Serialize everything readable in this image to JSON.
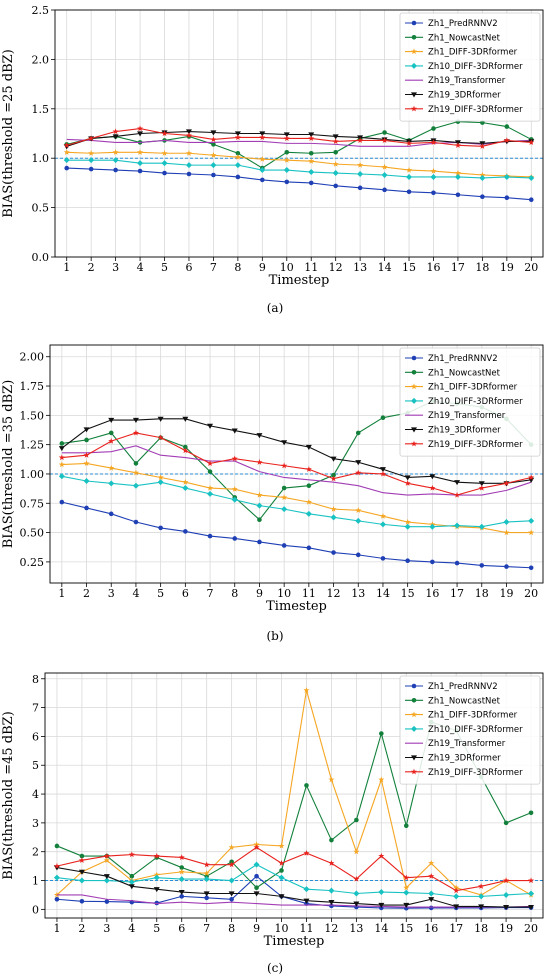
{
  "chart_data": [
    {
      "type": "line",
      "panel_label": "(a)",
      "xlabel": "Timestep",
      "ylabel": "BIAS(threshold =25 dBZ)",
      "x": [
        1,
        2,
        3,
        4,
        5,
        6,
        7,
        8,
        9,
        10,
        11,
        12,
        13,
        14,
        15,
        16,
        17,
        18,
        19,
        20
      ],
      "xticks": [
        "1",
        "2",
        "3",
        "4",
        "5",
        "6",
        "7",
        "8",
        "9",
        "10",
        "11",
        "12",
        "13",
        "14",
        "15",
        "16",
        "17",
        "18",
        "19",
        "20"
      ],
      "ylim": [
        0,
        2.5
      ],
      "yticks": [
        "0.0",
        "0.5",
        "1.0",
        "1.5",
        "2.0",
        "2.5"
      ],
      "reference_line": 1.0,
      "grid": true,
      "legend_position": "top-right",
      "series": [
        {
          "name": "Zh1_PredRNNV2",
          "color": "#1f3fb4",
          "marker": "circle",
          "values": [
            0.9,
            0.89,
            0.88,
            0.87,
            0.85,
            0.84,
            0.83,
            0.81,
            0.78,
            0.76,
            0.75,
            0.72,
            0.7,
            0.68,
            0.66,
            0.65,
            0.63,
            0.61,
            0.6,
            0.58
          ]
        },
        {
          "name": "Zh1_NowcastNet",
          "color": "#12803b",
          "marker": "circle",
          "values": [
            1.14,
            1.2,
            1.22,
            1.16,
            1.18,
            1.22,
            1.14,
            1.05,
            0.9,
            1.06,
            1.05,
            1.06,
            1.2,
            1.26,
            1.18,
            1.3,
            1.37,
            1.36,
            1.32,
            1.19
          ]
        },
        {
          "name": "Zh1_DIFF-3DRformer",
          "color": "#f5a623",
          "marker": "star",
          "values": [
            1.06,
            1.05,
            1.06,
            1.06,
            1.05,
            1.05,
            1.03,
            1.01,
            0.99,
            0.98,
            0.97,
            0.94,
            0.93,
            0.91,
            0.88,
            0.87,
            0.85,
            0.83,
            0.82,
            0.81
          ]
        },
        {
          "name": "Zh10_DIFF-3DRformer",
          "color": "#19c2c2",
          "marker": "diamond",
          "values": [
            0.98,
            0.98,
            0.98,
            0.95,
            0.95,
            0.93,
            0.93,
            0.93,
            0.88,
            0.88,
            0.86,
            0.85,
            0.84,
            0.83,
            0.81,
            0.81,
            0.81,
            0.8,
            0.81,
            0.8
          ]
        },
        {
          "name": "Zh19_Transformer",
          "color": "#a23db5",
          "marker": "none",
          "values": [
            1.19,
            1.18,
            1.16,
            1.16,
            1.18,
            1.16,
            1.16,
            1.17,
            1.17,
            1.15,
            1.15,
            1.14,
            1.12,
            1.12,
            1.12,
            1.15,
            1.16,
            1.14,
            1.17,
            1.18
          ]
        },
        {
          "name": "Zh19_3DRformer",
          "color": "#111111",
          "marker": "triangle-down",
          "values": [
            1.12,
            1.2,
            1.22,
            1.25,
            1.26,
            1.27,
            1.26,
            1.25,
            1.25,
            1.24,
            1.24,
            1.22,
            1.21,
            1.19,
            1.17,
            1.18,
            1.16,
            1.15,
            1.17,
            1.17
          ]
        },
        {
          "name": "Zh19_DIFF-3DRformer",
          "color": "#e8231e",
          "marker": "star",
          "values": [
            1.13,
            1.2,
            1.27,
            1.3,
            1.25,
            1.23,
            1.19,
            1.21,
            1.21,
            1.2,
            1.2,
            1.17,
            1.18,
            1.18,
            1.15,
            1.16,
            1.13,
            1.12,
            1.18,
            1.16
          ]
        }
      ]
    },
    {
      "type": "line",
      "panel_label": "(b)",
      "xlabel": "Timestep",
      "ylabel": "BIAS(threshold =35 dBZ)",
      "x": [
        1,
        2,
        3,
        4,
        5,
        6,
        7,
        8,
        9,
        10,
        11,
        12,
        13,
        14,
        15,
        16,
        17,
        18,
        19,
        20
      ],
      "xticks": [
        "1",
        "2",
        "3",
        "4",
        "5",
        "6",
        "7",
        "8",
        "9",
        "10",
        "11",
        "12",
        "13",
        "14",
        "15",
        "16",
        "17",
        "18",
        "19",
        "20"
      ],
      "ylim": [
        0.07,
        2.1
      ],
      "yticks": [
        "0.25",
        "0.50",
        "0.75",
        "1.00",
        "1.25",
        "1.50",
        "1.75",
        "2.00"
      ],
      "reference_line": 1.0,
      "grid": true,
      "legend_position": "top-right",
      "series": [
        {
          "name": "Zh1_PredRNNV2",
          "color": "#1f3fb4",
          "marker": "circle",
          "values": [
            0.76,
            0.71,
            0.66,
            0.59,
            0.54,
            0.51,
            0.47,
            0.45,
            0.42,
            0.39,
            0.37,
            0.33,
            0.31,
            0.28,
            0.26,
            0.25,
            0.24,
            0.22,
            0.21,
            0.2
          ]
        },
        {
          "name": "Zh1_NowcastNet",
          "color": "#12803b",
          "marker": "circle",
          "values": [
            1.26,
            1.29,
            1.35,
            1.09,
            1.31,
            1.23,
            1.02,
            0.8,
            0.61,
            0.88,
            0.9,
            0.99,
            1.35,
            1.48,
            1.52,
            1.62,
            1.6,
            1.57,
            1.47,
            1.25
          ]
        },
        {
          "name": "Zh1_DIFF-3DRformer",
          "color": "#f5a623",
          "marker": "star",
          "values": [
            1.08,
            1.09,
            1.05,
            1.01,
            0.97,
            0.93,
            0.88,
            0.87,
            0.82,
            0.8,
            0.76,
            0.7,
            0.69,
            0.64,
            0.59,
            0.57,
            0.55,
            0.54,
            0.5,
            0.5
          ]
        },
        {
          "name": "Zh10_DIFF-3DRformer",
          "color": "#19c2c2",
          "marker": "diamond",
          "values": [
            0.98,
            0.94,
            0.92,
            0.9,
            0.93,
            0.88,
            0.83,
            0.78,
            0.73,
            0.7,
            0.66,
            0.63,
            0.6,
            0.57,
            0.55,
            0.55,
            0.56,
            0.55,
            0.59,
            0.6
          ]
        },
        {
          "name": "Zh19_Transformer",
          "color": "#a23db5",
          "marker": "none",
          "values": [
            1.18,
            1.18,
            1.19,
            1.24,
            1.16,
            1.14,
            1.11,
            1.11,
            1.02,
            0.97,
            0.95,
            0.93,
            0.9,
            0.84,
            0.82,
            0.83,
            0.82,
            0.82,
            0.86,
            0.93
          ]
        },
        {
          "name": "Zh19_3DRformer",
          "color": "#111111",
          "marker": "triangle-down",
          "values": [
            1.22,
            1.38,
            1.46,
            1.46,
            1.47,
            1.47,
            1.41,
            1.37,
            1.33,
            1.27,
            1.23,
            1.13,
            1.1,
            1.04,
            0.97,
            0.98,
            0.93,
            0.92,
            0.92,
            0.95
          ]
        },
        {
          "name": "Zh19_DIFF-3DRformer",
          "color": "#e8231e",
          "marker": "star",
          "values": [
            1.14,
            1.16,
            1.28,
            1.35,
            1.31,
            1.2,
            1.09,
            1.13,
            1.1,
            1.07,
            1.04,
            0.96,
            1.01,
            1.0,
            0.92,
            0.88,
            0.82,
            0.88,
            0.92,
            0.97
          ]
        }
      ]
    },
    {
      "type": "line",
      "panel_label": "(c)",
      "xlabel": "Timestep",
      "ylabel": "BIAS(threshold =45 dBZ)",
      "x": [
        1,
        2,
        3,
        4,
        5,
        6,
        7,
        8,
        9,
        10,
        11,
        12,
        13,
        14,
        15,
        16,
        17,
        18,
        19,
        20
      ],
      "xticks": [
        "1",
        "2",
        "3",
        "4",
        "5",
        "6",
        "7",
        "8",
        "9",
        "10",
        "11",
        "12",
        "13",
        "14",
        "15",
        "16",
        "17",
        "18",
        "19",
        "20"
      ],
      "ylim": [
        -0.3,
        8.2
      ],
      "yticks": [
        "0",
        "1",
        "2",
        "3",
        "4",
        "5",
        "6",
        "7",
        "8"
      ],
      "reference_line": 1.0,
      "grid": true,
      "legend_position": "top-right",
      "series": [
        {
          "name": "Zh1_PredRNNV2",
          "color": "#1f3fb4",
          "marker": "circle",
          "values": [
            0.35,
            0.28,
            0.27,
            0.25,
            0.22,
            0.45,
            0.4,
            0.35,
            1.15,
            0.45,
            0.2,
            0.12,
            0.08,
            0.05,
            0.04,
            0.05,
            0.05,
            0.05,
            0.06,
            0.06
          ]
        },
        {
          "name": "Zh1_NowcastNet",
          "color": "#12803b",
          "marker": "circle",
          "values": [
            2.2,
            1.85,
            1.85,
            1.15,
            1.8,
            1.45,
            1.15,
            1.65,
            0.75,
            1.35,
            4.3,
            2.4,
            3.1,
            6.1,
            2.9,
            6.5,
            6.2,
            4.6,
            3.0,
            3.35
          ]
        },
        {
          "name": "Zh1_DIFF-3DRformer",
          "color": "#f5a623",
          "marker": "star",
          "values": [
            0.5,
            1.3,
            1.7,
            1.0,
            1.2,
            1.3,
            1.25,
            2.15,
            2.25,
            2.2,
            7.6,
            4.5,
            2.0,
            4.5,
            0.75,
            1.6,
            0.75,
            0.5,
            1.0,
            0.5
          ]
        },
        {
          "name": "Zh10_DIFF-3DRformer",
          "color": "#19c2c2",
          "marker": "diamond",
          "values": [
            1.1,
            1.0,
            1.0,
            0.95,
            1.1,
            1.05,
            1.05,
            1.0,
            1.55,
            1.1,
            0.7,
            0.65,
            0.55,
            0.6,
            0.58,
            0.55,
            0.45,
            0.45,
            0.5,
            0.55
          ]
        },
        {
          "name": "Zh19_Transformer",
          "color": "#a23db5",
          "marker": "none",
          "values": [
            0.5,
            0.5,
            0.35,
            0.3,
            0.2,
            0.25,
            0.2,
            0.25,
            0.2,
            0.15,
            0.15,
            0.15,
            0.12,
            0.1,
            0.08,
            0.08,
            0.08,
            0.08,
            0.08,
            0.1
          ]
        },
        {
          "name": "Zh19_3DRformer",
          "color": "#111111",
          "marker": "triangle-down",
          "values": [
            1.45,
            1.3,
            1.15,
            0.8,
            0.7,
            0.6,
            0.55,
            0.55,
            0.55,
            0.45,
            0.3,
            0.25,
            0.2,
            0.15,
            0.15,
            0.35,
            0.1,
            0.1,
            0.08,
            0.08
          ]
        },
        {
          "name": "Zh19_DIFF-3DRformer",
          "color": "#e8231e",
          "marker": "star",
          "values": [
            1.5,
            1.7,
            1.85,
            1.9,
            1.85,
            1.8,
            1.55,
            1.55,
            2.15,
            1.6,
            1.95,
            1.6,
            1.05,
            1.85,
            1.1,
            1.15,
            0.65,
            0.8,
            1.0,
            1.0
          ]
        }
      ]
    }
  ]
}
